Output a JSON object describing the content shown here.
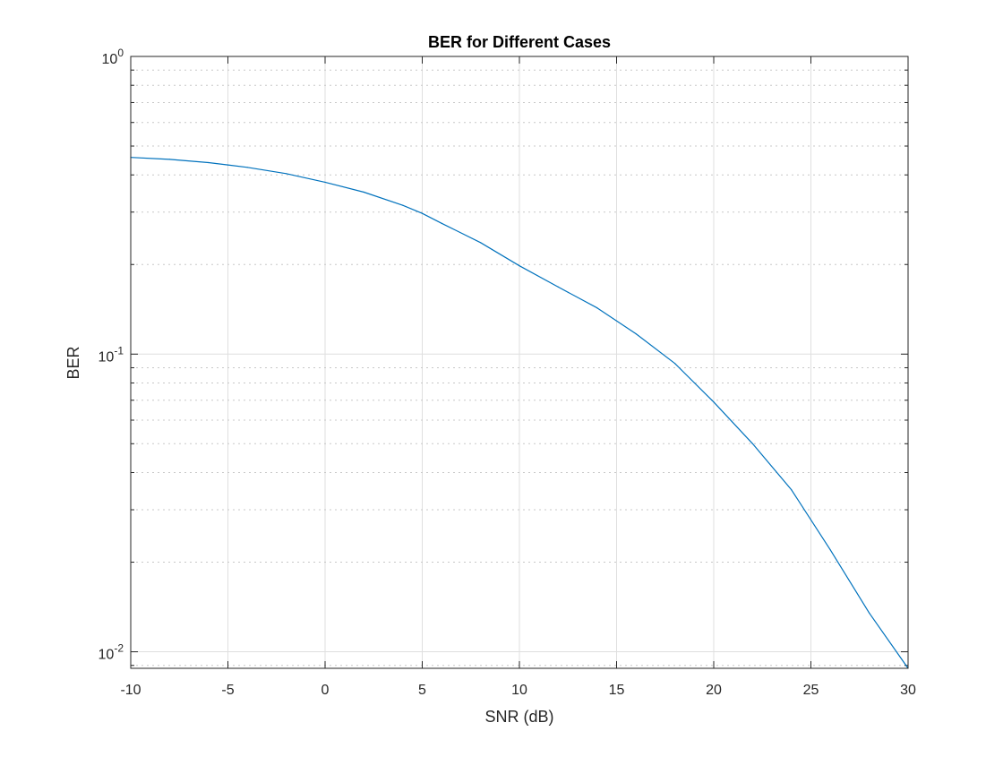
{
  "chart_data": {
    "type": "line",
    "title": "BER for Different Cases",
    "xlabel": "SNR (dB)",
    "ylabel": "BER",
    "xlim": [
      -10,
      30
    ],
    "ylim": [
      0.0088,
      1
    ],
    "yscale": "log",
    "grid": true,
    "x_ticks": [
      -10,
      -5,
      0,
      5,
      10,
      15,
      20,
      25,
      30
    ],
    "x_tick_labels": [
      "-10",
      "-5",
      "0",
      "5",
      "10",
      "15",
      "20",
      "25",
      "30"
    ],
    "y_ticks": [
      {
        "value": 1,
        "base": "10",
        "exponent": "0"
      },
      {
        "value": 0.1,
        "base": "10",
        "exponent": "-1"
      },
      {
        "value": 0.01,
        "base": "10",
        "exponent": "-2"
      }
    ],
    "series": [
      {
        "color": "#0072bd",
        "x": [
          -10,
          -8,
          -6,
          -5,
          -4,
          -2,
          0,
          2,
          4,
          5,
          6,
          8,
          10,
          12,
          14,
          16,
          18,
          20,
          22,
          24,
          26,
          28,
          30
        ],
        "y": [
          0.458,
          0.451,
          0.44,
          0.432,
          0.424,
          0.404,
          0.378,
          0.35,
          0.316,
          0.297,
          0.275,
          0.237,
          0.198,
          0.168,
          0.143,
          0.117,
          0.093,
          0.069,
          0.05,
          0.035,
          0.022,
          0.0135,
          0.0088
        ]
      }
    ]
  }
}
